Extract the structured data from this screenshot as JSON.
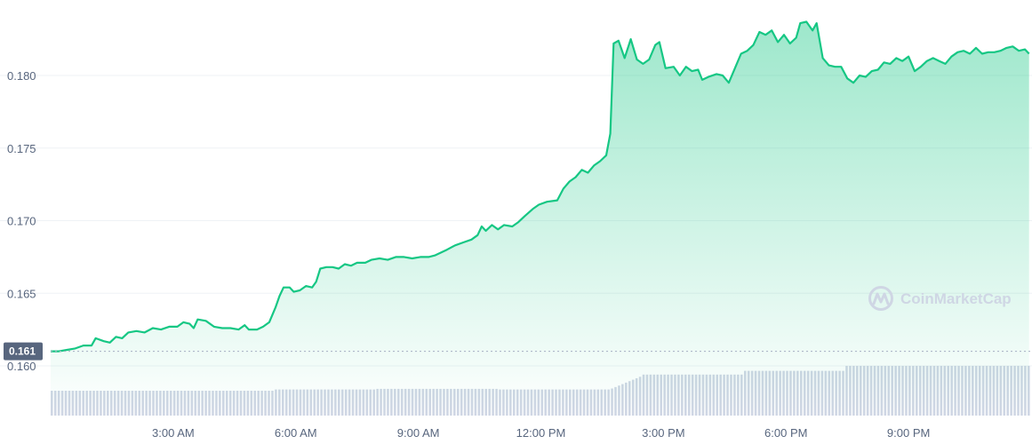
{
  "chart_data": {
    "type": "area",
    "title": "",
    "xlabel": "",
    "ylabel": "",
    "ylim": [
      0.158,
      0.184
    ],
    "xlim": [
      0,
      24
    ],
    "grid": true,
    "yticks": [
      {
        "value": 0.16,
        "label": "0.160"
      },
      {
        "value": 0.165,
        "label": "0.165"
      },
      {
        "value": 0.17,
        "label": "0.170"
      },
      {
        "value": 0.175,
        "label": "0.175"
      },
      {
        "value": 0.18,
        "label": "0.180"
      }
    ],
    "xticks": [
      {
        "value": 3,
        "label": "3:00 AM"
      },
      {
        "value": 6,
        "label": "6:00 AM"
      },
      {
        "value": 9,
        "label": "9:00 AM"
      },
      {
        "value": 12,
        "label": "12:00 PM"
      },
      {
        "value": 15,
        "label": "3:00 PM"
      },
      {
        "value": 18,
        "label": "6:00 PM"
      },
      {
        "value": 21,
        "label": "9:00 PM"
      }
    ],
    "current_price": {
      "value": 0.161,
      "label": "0.161"
    },
    "series": [
      {
        "color": "#16c784",
        "points": [
          [
            0.0,
            0.161
          ],
          [
            0.2,
            0.161
          ],
          [
            0.4,
            0.1611
          ],
          [
            0.6,
            0.1612
          ],
          [
            0.8,
            0.1614
          ],
          [
            1.0,
            0.1614
          ],
          [
            1.1,
            0.1619
          ],
          [
            1.3,
            0.1617
          ],
          [
            1.45,
            0.1616
          ],
          [
            1.6,
            0.162
          ],
          [
            1.75,
            0.1619
          ],
          [
            1.9,
            0.1623
          ],
          [
            2.1,
            0.1624
          ],
          [
            2.3,
            0.1623
          ],
          [
            2.5,
            0.1626
          ],
          [
            2.7,
            0.1625
          ],
          [
            2.9,
            0.1627
          ],
          [
            3.1,
            0.1627
          ],
          [
            3.25,
            0.163
          ],
          [
            3.4,
            0.1629
          ],
          [
            3.5,
            0.1626
          ],
          [
            3.6,
            0.1632
          ],
          [
            3.8,
            0.1631
          ],
          [
            4.0,
            0.1627
          ],
          [
            4.2,
            0.1626
          ],
          [
            4.4,
            0.1626
          ],
          [
            4.6,
            0.1625
          ],
          [
            4.75,
            0.1628
          ],
          [
            4.85,
            0.1625
          ],
          [
            5.05,
            0.1625
          ],
          [
            5.2,
            0.1627
          ],
          [
            5.35,
            0.163
          ],
          [
            5.5,
            0.164
          ],
          [
            5.6,
            0.1648
          ],
          [
            5.7,
            0.1654
          ],
          [
            5.85,
            0.1654
          ],
          [
            5.95,
            0.1651
          ],
          [
            6.1,
            0.1652
          ],
          [
            6.25,
            0.1655
          ],
          [
            6.4,
            0.1654
          ],
          [
            6.5,
            0.1658
          ],
          [
            6.6,
            0.1667
          ],
          [
            6.75,
            0.1668
          ],
          [
            6.9,
            0.1668
          ],
          [
            7.05,
            0.1667
          ],
          [
            7.2,
            0.167
          ],
          [
            7.35,
            0.1669
          ],
          [
            7.5,
            0.1671
          ],
          [
            7.7,
            0.1671
          ],
          [
            7.85,
            0.1673
          ],
          [
            8.05,
            0.1674
          ],
          [
            8.25,
            0.1673
          ],
          [
            8.45,
            0.1675
          ],
          [
            8.65,
            0.1675
          ],
          [
            8.85,
            0.1674
          ],
          [
            9.05,
            0.1675
          ],
          [
            9.25,
            0.1675
          ],
          [
            9.4,
            0.1676
          ],
          [
            9.55,
            0.1678
          ],
          [
            9.7,
            0.168
          ],
          [
            9.9,
            0.1683
          ],
          [
            10.1,
            0.1685
          ],
          [
            10.3,
            0.1687
          ],
          [
            10.45,
            0.169
          ],
          [
            10.55,
            0.1696
          ],
          [
            10.65,
            0.1693
          ],
          [
            10.8,
            0.1697
          ],
          [
            10.95,
            0.1694
          ],
          [
            11.1,
            0.1697
          ],
          [
            11.3,
            0.1696
          ],
          [
            11.45,
            0.1699
          ],
          [
            11.6,
            0.1703
          ],
          [
            11.8,
            0.1708
          ],
          [
            11.95,
            0.1711
          ],
          [
            12.15,
            0.1713
          ],
          [
            12.4,
            0.1714
          ],
          [
            12.55,
            0.1722
          ],
          [
            12.7,
            0.1727
          ],
          [
            12.85,
            0.173
          ],
          [
            13.0,
            0.1735
          ],
          [
            13.15,
            0.1733
          ],
          [
            13.3,
            0.1738
          ],
          [
            13.45,
            0.1741
          ],
          [
            13.6,
            0.1745
          ],
          [
            13.7,
            0.176
          ],
          [
            13.78,
            0.1822
          ],
          [
            13.9,
            0.1824
          ],
          [
            14.05,
            0.1812
          ],
          [
            14.2,
            0.1825
          ],
          [
            14.35,
            0.1811
          ],
          [
            14.5,
            0.1808
          ],
          [
            14.65,
            0.1811
          ],
          [
            14.8,
            0.1821
          ],
          [
            14.9,
            0.1823
          ],
          [
            15.05,
            0.1805
          ],
          [
            15.25,
            0.1806
          ],
          [
            15.4,
            0.18
          ],
          [
            15.55,
            0.1806
          ],
          [
            15.7,
            0.1803
          ],
          [
            15.85,
            0.1804
          ],
          [
            15.95,
            0.1797
          ],
          [
            16.1,
            0.1799
          ],
          [
            16.3,
            0.1801
          ],
          [
            16.45,
            0.18
          ],
          [
            16.6,
            0.1795
          ],
          [
            16.75,
            0.1805
          ],
          [
            16.9,
            0.1815
          ],
          [
            17.05,
            0.1817
          ],
          [
            17.2,
            0.1821
          ],
          [
            17.35,
            0.183
          ],
          [
            17.5,
            0.1828
          ],
          [
            17.65,
            0.1831
          ],
          [
            17.8,
            0.1823
          ],
          [
            17.95,
            0.1828
          ],
          [
            18.1,
            0.1822
          ],
          [
            18.25,
            0.1826
          ],
          [
            18.35,
            0.1836
          ],
          [
            18.5,
            0.1837
          ],
          [
            18.65,
            0.1831
          ],
          [
            18.75,
            0.1836
          ],
          [
            18.9,
            0.1812
          ],
          [
            19.05,
            0.1807
          ],
          [
            19.2,
            0.1806
          ],
          [
            19.35,
            0.1806
          ],
          [
            19.5,
            0.1798
          ],
          [
            19.65,
            0.1795
          ],
          [
            19.8,
            0.18
          ],
          [
            19.95,
            0.1799
          ],
          [
            20.1,
            0.1803
          ],
          [
            20.25,
            0.1804
          ],
          [
            20.4,
            0.1809
          ],
          [
            20.55,
            0.1808
          ],
          [
            20.7,
            0.1812
          ],
          [
            20.85,
            0.181
          ],
          [
            21.0,
            0.1813
          ],
          [
            21.15,
            0.1803
          ],
          [
            21.3,
            0.1806
          ],
          [
            21.45,
            0.181
          ],
          [
            21.6,
            0.1812
          ],
          [
            21.75,
            0.181
          ],
          [
            21.9,
            0.1808
          ],
          [
            22.05,
            0.1813
          ],
          [
            22.2,
            0.1816
          ],
          [
            22.35,
            0.1817
          ],
          [
            22.5,
            0.1815
          ],
          [
            22.65,
            0.1819
          ],
          [
            22.8,
            0.1815
          ],
          [
            22.95,
            0.1816
          ],
          [
            23.1,
            0.1816
          ],
          [
            23.25,
            0.1817
          ],
          [
            23.4,
            0.1819
          ],
          [
            23.55,
            0.182
          ],
          [
            23.7,
            0.1817
          ],
          [
            23.85,
            0.1818
          ],
          [
            23.95,
            0.1815
          ]
        ]
      }
    ],
    "volume": {
      "color": "#cfd6e4",
      "bar_count": 280,
      "segments": [
        {
          "from": 0,
          "to": 5.5,
          "level": 0.4
        },
        {
          "from": 5.5,
          "to": 8.0,
          "level": 0.42
        },
        {
          "from": 8.0,
          "to": 11.0,
          "level": 0.43
        },
        {
          "from": 11.0,
          "to": 13.7,
          "level": 0.42
        },
        {
          "from": 13.7,
          "to": 14.5,
          "level": 0.55
        },
        {
          "from": 14.5,
          "to": 17.0,
          "level": 0.66
        },
        {
          "from": 17.0,
          "to": 19.5,
          "level": 0.72
        },
        {
          "from": 19.5,
          "to": 24.0,
          "level": 0.8
        }
      ]
    }
  },
  "watermark": {
    "text": "CoinMarketCap",
    "icon": "coinmarketcap-logo-icon"
  },
  "colors": {
    "line": "#16c784",
    "grid": "#eff2f5",
    "axis_text": "#58667e",
    "volume": "#cfd6e4",
    "current_badge": "#58667e"
  }
}
